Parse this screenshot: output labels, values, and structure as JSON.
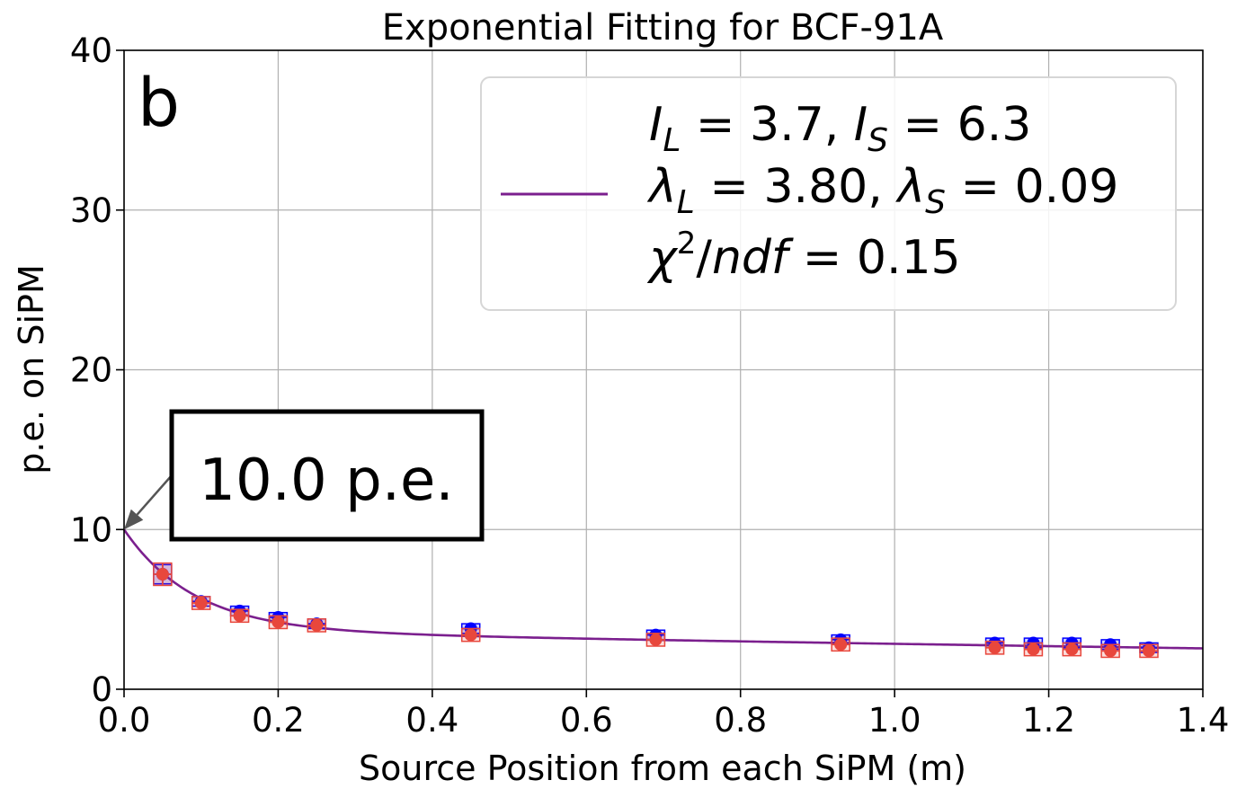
{
  "chart_data": {
    "type": "scatter",
    "title": "Exponential Fitting for BCF-91A",
    "xlabel": "Source Position from each SiPM (m)",
    "ylabel": "p.e. on SiPM",
    "xlim": [
      0.0,
      1.4
    ],
    "ylim": [
      0,
      40
    ],
    "x_ticks": [
      "0.0",
      "0.2",
      "0.4",
      "0.6",
      "0.8",
      "1.0",
      "1.2",
      "1.4"
    ],
    "y_ticks": [
      "0",
      "10",
      "20",
      "30",
      "40"
    ],
    "grid": true,
    "panel_label": "b",
    "legend_placement": "top-right",
    "legend": {
      "lines": [
        {
          "parts": [
            [
              "I",
              "i"
            ],
            [
              "L",
              "sub-i"
            ],
            [
              " = 3.7, ",
              "n"
            ],
            [
              "I",
              "i"
            ],
            [
              "S",
              "sub-i"
            ],
            [
              " = 6.3",
              "n"
            ]
          ]
        },
        {
          "parts": [
            [
              "λ",
              "i"
            ],
            [
              "L",
              "sub-i"
            ],
            [
              " = 3.80, ",
              "n"
            ],
            [
              "λ",
              "i"
            ],
            [
              "S",
              "sub-i"
            ],
            [
              " = 0.09",
              "n"
            ]
          ]
        },
        {
          "parts": [
            [
              "χ",
              "i"
            ],
            [
              "2",
              "sup"
            ],
            [
              "/",
              "n"
            ],
            [
              "ndf",
              "i"
            ],
            [
              " = 0.15",
              "n"
            ]
          ]
        }
      ]
    },
    "fit": {
      "I_L": 3.7,
      "I_S": 6.3,
      "lambda_L": 3.8,
      "lambda_S": 0.09,
      "color": "#7b1f8e"
    },
    "series": [
      {
        "color": "#0000ff",
        "points": [
          {
            "x": 0.05,
            "y": 7.2,
            "err": 0.6
          },
          {
            "x": 0.1,
            "y": 5.5,
            "err": 0.3
          },
          {
            "x": 0.15,
            "y": 4.9,
            "err": 0.3
          },
          {
            "x": 0.2,
            "y": 4.5,
            "err": 0.3
          },
          {
            "x": 0.25,
            "y": 4.1,
            "err": 0.3
          },
          {
            "x": 0.45,
            "y": 3.8,
            "err": 0.3
          },
          {
            "x": 0.69,
            "y": 3.4,
            "err": 0.3
          },
          {
            "x": 0.93,
            "y": 3.1,
            "err": 0.3
          },
          {
            "x": 1.13,
            "y": 2.9,
            "err": 0.3
          },
          {
            "x": 1.18,
            "y": 2.9,
            "err": 0.3
          },
          {
            "x": 1.23,
            "y": 2.9,
            "err": 0.3
          },
          {
            "x": 1.28,
            "y": 2.8,
            "err": 0.3
          },
          {
            "x": 1.33,
            "y": 2.6,
            "err": 0.3
          }
        ]
      },
      {
        "color": "#e8473c",
        "points": [
          {
            "x": 0.05,
            "y": 7.2,
            "err": 0.7
          },
          {
            "x": 0.1,
            "y": 5.4,
            "err": 0.4
          },
          {
            "x": 0.15,
            "y": 4.6,
            "err": 0.4
          },
          {
            "x": 0.2,
            "y": 4.2,
            "err": 0.4
          },
          {
            "x": 0.25,
            "y": 4.0,
            "err": 0.4
          },
          {
            "x": 0.45,
            "y": 3.4,
            "err": 0.4
          },
          {
            "x": 0.69,
            "y": 3.1,
            "err": 0.4
          },
          {
            "x": 0.93,
            "y": 2.8,
            "err": 0.4
          },
          {
            "x": 1.13,
            "y": 2.6,
            "err": 0.4
          },
          {
            "x": 1.18,
            "y": 2.5,
            "err": 0.4
          },
          {
            "x": 1.23,
            "y": 2.5,
            "err": 0.4
          },
          {
            "x": 1.28,
            "y": 2.4,
            "err": 0.4
          },
          {
            "x": 1.33,
            "y": 2.4,
            "err": 0.4
          }
        ]
      }
    ],
    "annotation": {
      "text": "10.0 p.e.",
      "x": 0.0,
      "y": 10.0
    }
  }
}
